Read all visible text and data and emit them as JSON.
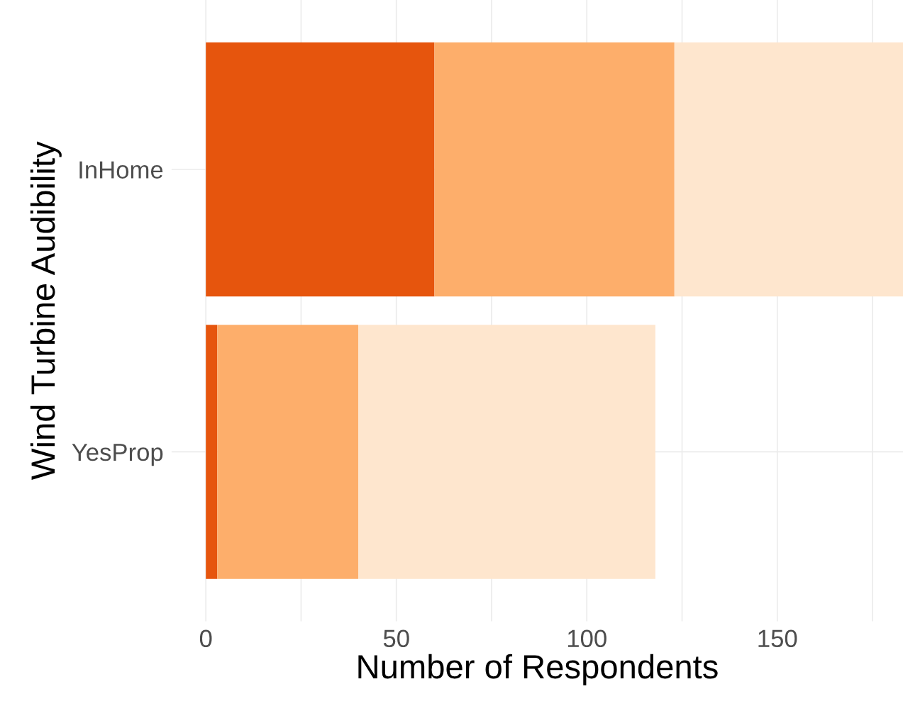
{
  "chart_data": {
    "type": "bar",
    "orientation": "horizontal",
    "stacked": true,
    "xlabel": "Number of Respondents",
    "ylabel": "Wind Turbine Audibility",
    "categories": [
      "InHome",
      "YesProp"
    ],
    "series": [
      {
        "color": "#e6550d",
        "values": [
          60,
          3
        ]
      },
      {
        "color": "#fdae6b",
        "values": [
          63,
          37
        ]
      },
      {
        "color": "#fee6ce",
        "values": [
          60,
          78
        ]
      }
    ],
    "xlim": [
      -9,
      183
    ],
    "xticks": [
      0,
      {
        "value": 25,
        "label": null
      },
      50,
      {
        "value": 75,
        "label": null
      },
      100,
      {
        "value": 125,
        "label": null
      },
      150,
      {
        "value": 175,
        "label": null
      }
    ],
    "grid": true,
    "legend": false
  }
}
